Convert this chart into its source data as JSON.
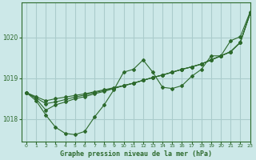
{
  "title": "Graphe pression niveau de la mer (hPa)",
  "background_color": "#cce8e8",
  "grid_color": "#aacccc",
  "line_color": "#2d6a2d",
  "xlim": [
    -0.5,
    23
  ],
  "ylim": [
    1017.45,
    1020.85
  ],
  "yticks": [
    1018,
    1019,
    1020
  ],
  "xticks": [
    0,
    1,
    2,
    3,
    4,
    5,
    6,
    7,
    8,
    9,
    10,
    11,
    12,
    13,
    14,
    15,
    16,
    17,
    18,
    19,
    20,
    21,
    22,
    23
  ],
  "series": [
    [
      1018.65,
      1018.45,
      1018.1,
      1017.8,
      1017.65,
      1017.62,
      1017.7,
      1018.05,
      1018.35,
      1018.72,
      1019.15,
      1019.22,
      1019.45,
      1019.15,
      1018.78,
      1018.75,
      1018.82,
      1019.05,
      1019.22,
      1019.55,
      1019.55,
      1019.92,
      1020.02,
      1020.62
    ],
    [
      1018.65,
      1018.5,
      1018.22,
      1018.35,
      1018.42,
      1018.5,
      1018.55,
      1018.62,
      1018.68,
      1018.75,
      1018.82,
      1018.88,
      1018.95,
      1019.02,
      1019.08,
      1019.15,
      1019.22,
      1019.28,
      1019.35,
      1019.45,
      1019.55,
      1019.65,
      1019.88,
      1020.58
    ],
    [
      1018.65,
      1018.52,
      1018.38,
      1018.42,
      1018.48,
      1018.54,
      1018.59,
      1018.65,
      1018.7,
      1018.76,
      1018.82,
      1018.88,
      1018.95,
      1019.02,
      1019.08,
      1019.15,
      1019.22,
      1019.28,
      1019.35,
      1019.45,
      1019.55,
      1019.65,
      1019.88,
      1020.58
    ],
    [
      1018.65,
      1018.55,
      1018.45,
      1018.5,
      1018.54,
      1018.58,
      1018.62,
      1018.67,
      1018.72,
      1018.77,
      1018.82,
      1018.88,
      1018.95,
      1019.02,
      1019.08,
      1019.15,
      1019.22,
      1019.28,
      1019.35,
      1019.45,
      1019.55,
      1019.65,
      1019.88,
      1020.58
    ]
  ]
}
